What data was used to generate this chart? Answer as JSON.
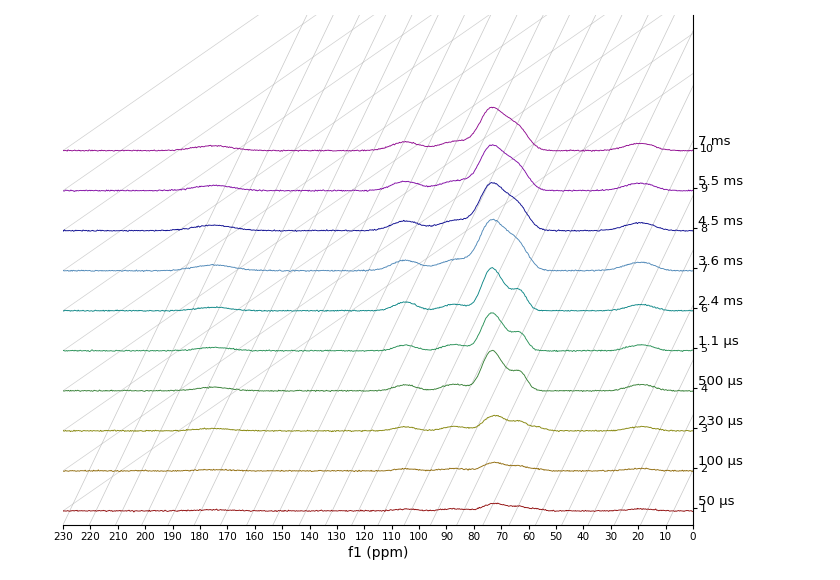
{
  "xlabel": "f1 (ppm)",
  "xmin": 0,
  "xmax": 230,
  "ymin": 0.0,
  "ymax": 10.2,
  "xticks": [
    0,
    10,
    20,
    30,
    40,
    50,
    60,
    70,
    80,
    90,
    100,
    110,
    120,
    130,
    140,
    150,
    160,
    170,
    180,
    190,
    200,
    210,
    220,
    230
  ],
  "spectra": [
    {
      "label": "50 μs",
      "baseline": 0.28,
      "color": "#8B0000",
      "seed": 1,
      "type": 1,
      "amp": 0.38
    },
    {
      "label": "100 μs",
      "baseline": 1.08,
      "color": "#8B6400",
      "seed": 2,
      "type": 2,
      "amp": 0.42
    },
    {
      "label": "230 μs",
      "baseline": 1.88,
      "color": "#808000",
      "seed": 3,
      "type": 3,
      "amp": 0.5
    },
    {
      "label": "500 μs",
      "baseline": 2.68,
      "color": "#2E7B2E",
      "seed": 4,
      "type": 4,
      "amp": 0.55
    },
    {
      "label": "1.1 μs",
      "baseline": 3.48,
      "color": "#1E8B4E",
      "seed": 5,
      "type": 4,
      "amp": 0.52
    },
    {
      "label": "2.4 ms",
      "baseline": 4.28,
      "color": "#008080",
      "seed": 6,
      "type": 5,
      "amp": 0.48
    },
    {
      "label": "3.6 ms",
      "baseline": 5.08,
      "color": "#4682B4",
      "seed": 7,
      "type": 6,
      "amp": 0.45
    },
    {
      "label": "4.5 ms",
      "baseline": 5.88,
      "color": "#00008B",
      "seed": 8,
      "type": 6,
      "amp": 0.42
    },
    {
      "label": "5.5 ms",
      "baseline": 6.68,
      "color": "#7B00A0",
      "seed": 9,
      "type": 7,
      "amp": 0.4
    },
    {
      "label": "7 ms",
      "baseline": 7.48,
      "color": "#8B008B",
      "seed": 10,
      "type": 7,
      "amp": 0.38
    }
  ],
  "background_color": "#ffffff",
  "grid_color": "#b0b0b0",
  "n_diag": 24,
  "diag_slope": 0.038,
  "noise_level": 0.012
}
